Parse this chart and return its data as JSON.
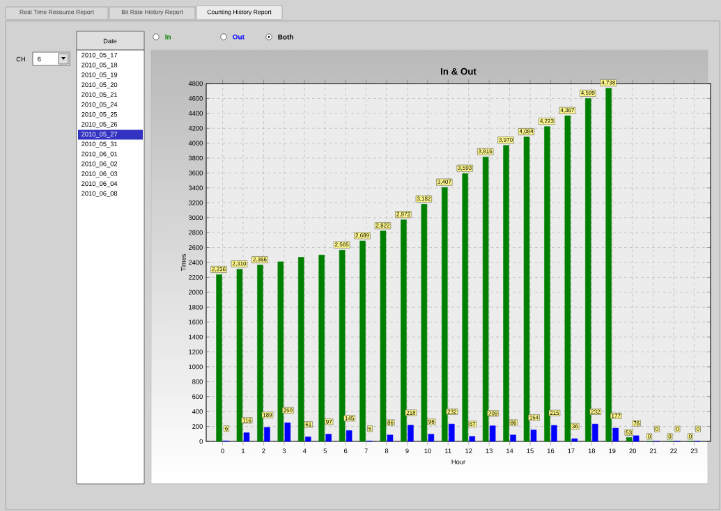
{
  "chart_data": {
    "type": "bar",
    "title": "In & Out",
    "xlabel": "Hour",
    "ylabel": "Times",
    "categories": [
      "0",
      "1",
      "2",
      "3",
      "4",
      "5",
      "6",
      "7",
      "8",
      "9",
      "10",
      "11",
      "12",
      "13",
      "14",
      "15",
      "16",
      "17",
      "18",
      "19",
      "20",
      "21",
      "22",
      "23"
    ],
    "series": [
      {
        "name": "In",
        "color": "#008000",
        "values": [
          2236,
          2310,
          2366,
          2410,
          2470,
          2500,
          2565,
          2689,
          2822,
          2972,
          3182,
          3407,
          3593,
          3815,
          3970,
          4084,
          4223,
          4367,
          4599,
          4738,
          53,
          0,
          0,
          0
        ],
        "value_labels": [
          "2,236",
          "2,310",
          "2,366",
          null,
          null,
          null,
          "2,565",
          "2,689",
          "2,822",
          "2,972",
          "3,182",
          "3,407",
          "3,593",
          "3,815",
          "3,970",
          "4,084",
          "4,223",
          "4,367",
          "4,599",
          "4,738",
          "53",
          "0",
          "0",
          "0"
        ]
      },
      {
        "name": "Out",
        "color": "#0000ff",
        "values": [
          6,
          116,
          189,
          250,
          61,
          97,
          145,
          5,
          86,
          218,
          96,
          232,
          67,
          209,
          86,
          154,
          215,
          36,
          232,
          177,
          76,
          0,
          0,
          0
        ],
        "value_labels": [
          "6",
          "116",
          "189",
          "250",
          "61",
          "97",
          "145",
          "5",
          "86",
          "218",
          "96",
          "232",
          "67",
          "209",
          "86",
          "154",
          "215",
          "36",
          "232",
          "177",
          "76",
          "0",
          "0",
          "0"
        ]
      }
    ],
    "ylim": [
      0,
      4800
    ],
    "yticks": [
      0,
      200,
      400,
      600,
      800,
      1000,
      1200,
      1400,
      1600,
      1800,
      2000,
      2200,
      2400,
      2600,
      2800,
      3000,
      3200,
      3400,
      3600,
      3800,
      4000,
      4200,
      4400,
      4600,
      4800
    ],
    "grid": true,
    "legend": "top left",
    "annotations": [
      "Real Time Resource Report",
      "Bit Rate History Report",
      "Counting History Report",
      "CH",
      "6",
      "Date",
      "2010_05_17",
      "2010_05_18",
      "2010_05_19",
      "2010_05_20",
      "2010_05_21",
      "2010_05_24",
      "2010_05_25",
      "2010_05_26",
      "2010_05_27",
      "2010_05_31",
      "2010_06_01",
      "2010_06_02",
      "2010_06_03",
      "2010_06_04",
      "2010_06_08",
      "Both"
    ]
  }
}
